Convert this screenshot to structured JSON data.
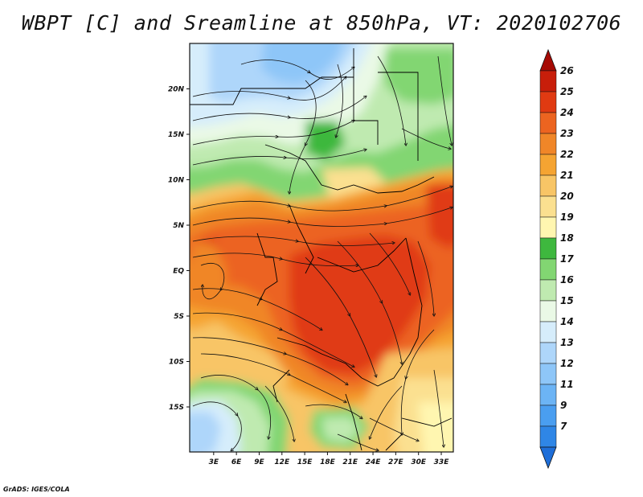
{
  "title": "WBPT [C] and Sreamline at 850hPa, VT: 2020102706",
  "credit": "GrADS: IGES/COLA",
  "map": {
    "variable": "Wet-bulb potential temperature (WBPT)",
    "units": "C",
    "level": "850hPa",
    "lon_range": [
      0,
      36
    ],
    "lat_range": [
      -20,
      25
    ],
    "lat_ticks": [
      {
        "value": 20,
        "label": "20N"
      },
      {
        "value": 15,
        "label": "15N"
      },
      {
        "value": 10,
        "label": "10N"
      },
      {
        "value": 5,
        "label": "5N"
      },
      {
        "value": 0,
        "label": "EQ"
      },
      {
        "value": -5,
        "label": "5S"
      },
      {
        "value": -10,
        "label": "10S"
      },
      {
        "value": -15,
        "label": "15S"
      }
    ],
    "lon_ticks": [
      {
        "value": 3,
        "label": "3E"
      },
      {
        "value": 6,
        "label": "6E"
      },
      {
        "value": 9,
        "label": "9E"
      },
      {
        "value": 12,
        "label": "12E"
      },
      {
        "value": 15,
        "label": "15E"
      },
      {
        "value": 18,
        "label": "18E"
      },
      {
        "value": 21,
        "label": "21E"
      },
      {
        "value": 24,
        "label": "24E"
      },
      {
        "value": 27,
        "label": "27E"
      },
      {
        "value": 30,
        "label": "30E"
      },
      {
        "value": 33,
        "label": "33E"
      }
    ],
    "colors": {
      "lt7": "#1e6ed8",
      "7": "#2f86e6",
      "9": "#4a9ef0",
      "11": "#6cb4f5",
      "12": "#8ec6f8",
      "13": "#aed6fa",
      "14": "#d6edfb",
      "15": "#eaf9e6",
      "16": "#bfeab0",
      "17": "#82d672",
      "18": "#3eb83e",
      "19": "#fff6b0",
      "20": "#fbe090",
      "21": "#f8c566",
      "22": "#f5a432",
      "23": "#f08628",
      "24": "#ec6420",
      "25": "#e03a12",
      "26": "#c81e0a",
      "gt26": "#a60a04"
    }
  },
  "colorbar": {
    "labels": [
      "26",
      "25",
      "24",
      "23",
      "22",
      "21",
      "20",
      "19",
      "18",
      "17",
      "16",
      "15",
      "14",
      "13",
      "12",
      "11",
      "9",
      "7"
    ],
    "colors": [
      "#c81e0a",
      "#e03a12",
      "#ec6420",
      "#f08628",
      "#f5a432",
      "#f8c566",
      "#fbe090",
      "#fff6b0",
      "#3eb83e",
      "#82d672",
      "#bfeab0",
      "#eaf9e6",
      "#d6edfb",
      "#aed6fa",
      "#8ec6f8",
      "#6cb4f5",
      "#4a9ef0",
      "#2f86e6"
    ],
    "top_color": "#a60a04",
    "bottom_color": "#1e6ed8"
  }
}
